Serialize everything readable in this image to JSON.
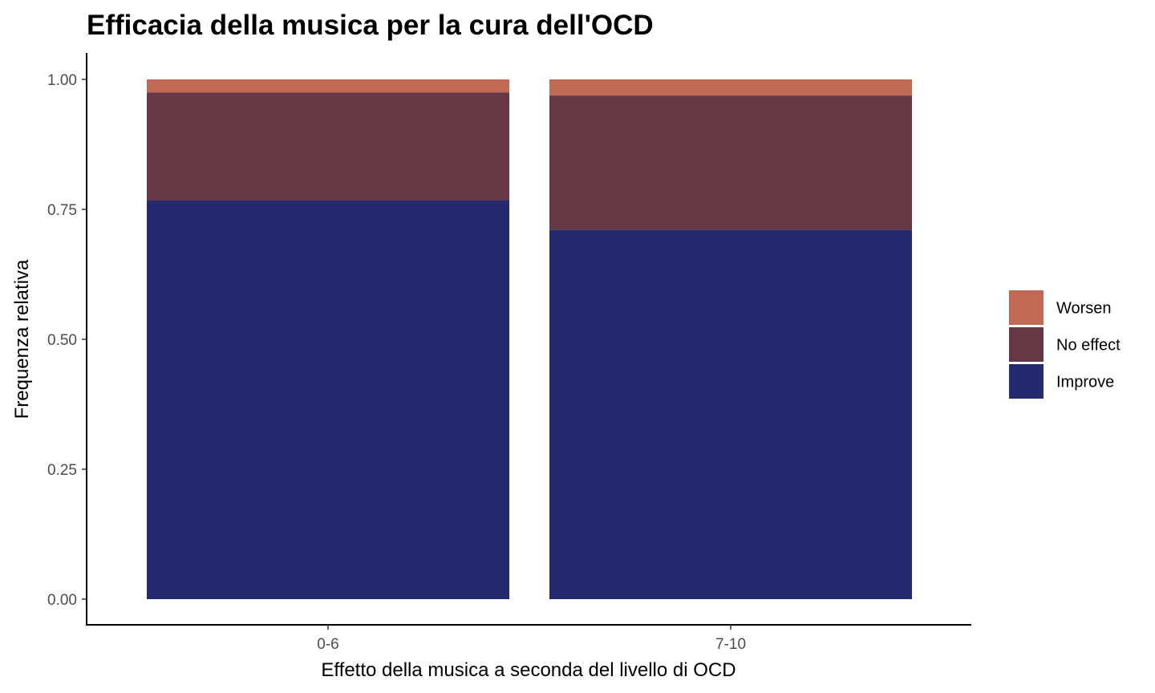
{
  "chart_data": {
    "type": "bar",
    "stacked": true,
    "title": "Efficacia della musica per la cura dell'OCD",
    "xlabel": "Effetto della musica a seconda del livello di OCD",
    "ylabel": "Frequenza relativa",
    "categories": [
      "0-6",
      "7-10"
    ],
    "series": [
      {
        "name": "Improve",
        "values": [
          0.767,
          0.711
        ],
        "color": "#25296d"
      },
      {
        "name": "No effect",
        "values": [
          0.208,
          0.258
        ],
        "color": "#663745"
      },
      {
        "name": "Worsen",
        "values": [
          0.025,
          0.031
        ],
        "color": "#c06a56"
      }
    ],
    "legend_order": [
      "Worsen",
      "No effect",
      "Improve"
    ],
    "ylim": [
      0,
      1
    ],
    "yticks": [
      0.0,
      0.25,
      0.5,
      0.75,
      1.0
    ],
    "ytick_labels": [
      "0.00",
      "0.25",
      "0.50",
      "0.75",
      "1.00"
    ],
    "grid": false,
    "legend_position": "right"
  }
}
